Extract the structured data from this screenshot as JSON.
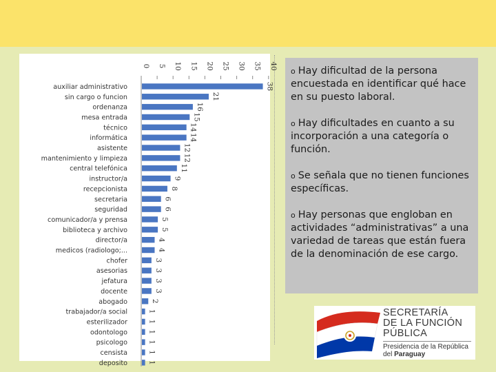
{
  "chart_data": {
    "type": "bar",
    "orientation": "horizontal",
    "title": "",
    "xlabel": "",
    "ylabel": "",
    "xlim": [
      0,
      40
    ],
    "ticks": [
      0,
      5,
      10,
      15,
      20,
      25,
      30,
      35,
      40
    ],
    "grid": false,
    "legend": "none",
    "bar_color": "#4a76c2",
    "categories": [
      "auxiliar administrativo",
      "sin cargo o funcion",
      "ordenanza",
      "mesa entrada",
      "técnico",
      "informática",
      "asistente",
      "mantenimiento y limpieza",
      "central telefónica",
      "instructor/a",
      "recepcionista",
      "secretaria",
      "seguridad",
      "comunicador/a y prensa",
      "biblioteca y archivo",
      "director/a",
      "medicos (radiologo;...",
      "chofer",
      "asesorias",
      "jefatura",
      "docente",
      "abogado",
      "trabajador/a social",
      "esterilizador",
      "odontologo",
      "psicologo",
      "censista",
      "deposito"
    ],
    "values": [
      38,
      21,
      16,
      15,
      14,
      14,
      12,
      12,
      11,
      9,
      8,
      6,
      6,
      5,
      5,
      4,
      4,
      3,
      3,
      3,
      3,
      2,
      1,
      1,
      1,
      1,
      1,
      1
    ]
  },
  "notes": [
    {
      "bullet": "o",
      "text": "Hay dificultad de la persona encuestada en identificar qué hace en su puesto laboral."
    },
    {
      "bullet": "o",
      "text": "Hay dificultades en cuanto a su incorporación a una categoría o función."
    },
    {
      "bullet": "o",
      "text": "Se señala que no tienen funciones específicas."
    },
    {
      "bullet": "o",
      "text": "Hay personas que engloban en actividades “administrativas” a una  variedad de tareas que están fuera de la denominación de ese cargo."
    }
  ],
  "logo": {
    "line1": "SECRETARÍA",
    "line2": "DE LA FUNCIÓN",
    "line3": "PÚBLICA",
    "line4": "Presidencia de la República",
    "line5_prefix": "del ",
    "line5_bold": "Paraguay",
    "colors": {
      "red": "#d52b1e",
      "blue": "#0038a8",
      "gold": "#c9a227"
    }
  }
}
